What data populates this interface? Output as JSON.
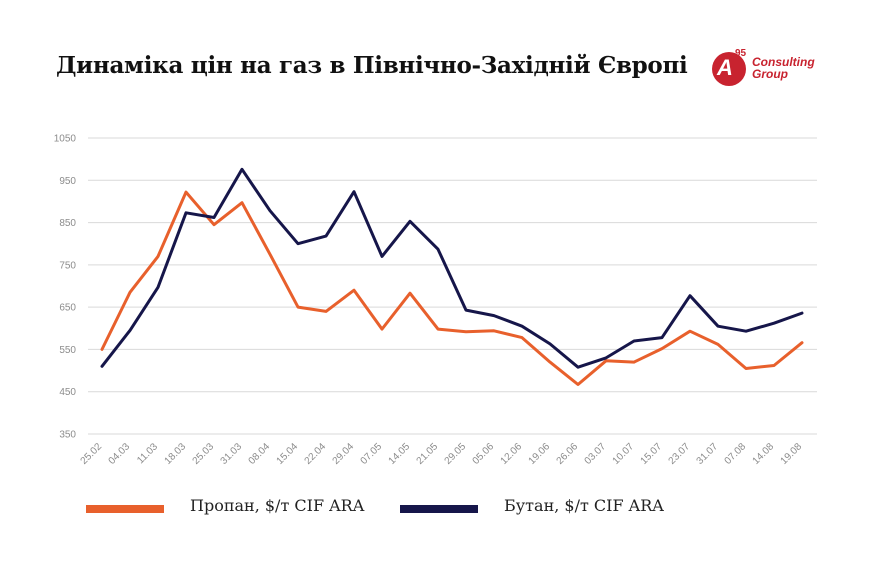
{
  "title": "Динаміка цін на газ в Північно-Західній Європі",
  "logo": {
    "badge_letter": "A",
    "badge_superscript": "95",
    "line1": "Consulting",
    "line2": "Group",
    "color": "#c8232f"
  },
  "legend": [
    {
      "label": "Пропан, $/т CIF ARA",
      "color": "#e8602c"
    },
    {
      "label": "Бутан, $/т CIF ARA",
      "color": "#16164a"
    }
  ],
  "chart_data": {
    "type": "line",
    "title": "Динаміка цін на газ в Північно-Західній Європі",
    "xlabel": "",
    "ylabel": "",
    "ylim": [
      350,
      1050
    ],
    "yticks": [
      350,
      450,
      550,
      650,
      750,
      850,
      950,
      1050
    ],
    "grid": true,
    "legend_position": "bottom",
    "categories": [
      "25.02",
      "04.03",
      "11.03",
      "18.03",
      "25.03",
      "31.03",
      "08.04",
      "15.04",
      "22.04",
      "29.04",
      "07.05",
      "14.05",
      "21.05",
      "29.05",
      "05.06",
      "12.06",
      "19.06",
      "26.06",
      "03.07",
      "10.07",
      "15.07",
      "23.07",
      "31.07",
      "07.08",
      "14.08",
      "19.08"
    ],
    "series": [
      {
        "name": "Пропан, $/т CIF ARA",
        "color": "#e8602c",
        "values": [
          550,
          685,
          770,
          922,
          845,
          897,
          775,
          650,
          640,
          690,
          598,
          683,
          598,
          592,
          594,
          578,
          520,
          467,
          523,
          520,
          552,
          593,
          562,
          505,
          512,
          566
        ]
      },
      {
        "name": "Бутан, $/т CIF ARA",
        "color": "#16164a",
        "values": [
          510,
          595,
          697,
          873,
          862,
          976,
          878,
          800,
          818,
          923,
          770,
          853,
          787,
          643,
          630,
          605,
          563,
          508,
          530,
          570,
          578,
          677,
          605,
          593,
          612,
          636
        ]
      }
    ]
  }
}
